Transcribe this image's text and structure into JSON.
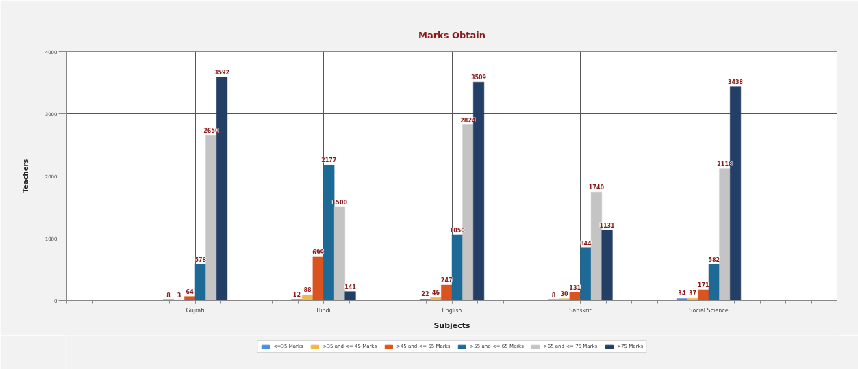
{
  "chart_data": {
    "type": "bar",
    "title": "Marks Obtain",
    "xlabel": "Subjects",
    "ylabel": "Teachers",
    "categories": [
      "Gujrati",
      "Hindi",
      "English",
      "Sanskrit",
      "Social Science"
    ],
    "series": [
      {
        "name": "<=35 Marks",
        "color": "#4a8ee0",
        "values": [
          8,
          12,
          22,
          8,
          34
        ]
      },
      {
        "name": ">35 and <= 45 Marks",
        "color": "#f2b64a",
        "values": [
          3,
          88,
          46,
          30,
          37
        ]
      },
      {
        "name": ">45 and <= 55 Marks",
        "color": "#d9541e",
        "values": [
          64,
          699,
          247,
          131,
          171
        ]
      },
      {
        "name": ">55 and <= 65 Marks",
        "color": "#1d6a96",
        "values": [
          578,
          2177,
          1050,
          844,
          582
        ]
      },
      {
        "name": ">65 and <= 75 Marks",
        "color": "#c4c4c4",
        "values": [
          2650,
          1500,
          2824,
          1740,
          2118
        ]
      },
      {
        "name": ">75 Marks",
        "color": "#243f66",
        "values": [
          3592,
          141,
          3509,
          1131,
          3438
        ]
      }
    ],
    "ylim": [
      0,
      4000
    ],
    "yticks": [
      0,
      1000,
      2000,
      3000,
      4000
    ],
    "grid": true,
    "legend": "bottom",
    "data_labels": true
  }
}
